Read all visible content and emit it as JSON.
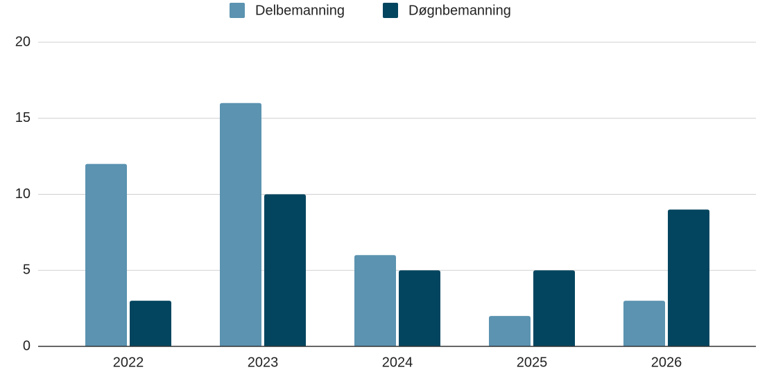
{
  "chart_data": {
    "type": "bar",
    "categories": [
      "2022",
      "2023",
      "2024",
      "2025",
      "2026"
    ],
    "series": [
      {
        "name": "Delbemanning",
        "color": "#5b93b0",
        "values": [
          12,
          16,
          6,
          2,
          3
        ]
      },
      {
        "name": "Døgnbemanning",
        "color": "#03455f",
        "values": [
          3,
          10,
          5,
          5,
          9
        ]
      }
    ],
    "ylim": [
      0,
      20
    ],
    "yticks": [
      0,
      5,
      10,
      15,
      20
    ],
    "grid": true,
    "legend": "top"
  }
}
